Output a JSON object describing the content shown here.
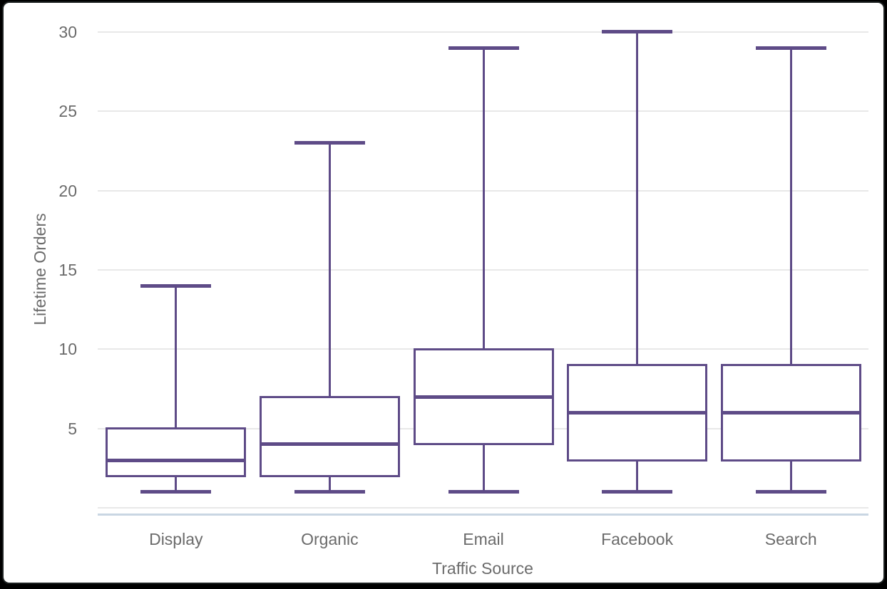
{
  "chart_data": {
    "type": "boxplot",
    "title": "",
    "xlabel": "Traffic Source",
    "ylabel": "Lifetime Orders",
    "categories": [
      "Display",
      "Organic",
      "Email",
      "Facebook",
      "Search"
    ],
    "series": [
      {
        "name": "Display",
        "whisker_low": 1,
        "q1": 2,
        "median": 3,
        "q3": 5,
        "whisker_high": 14
      },
      {
        "name": "Organic",
        "whisker_low": 1,
        "q1": 2,
        "median": 4,
        "q3": 7,
        "whisker_high": 23
      },
      {
        "name": "Email",
        "whisker_low": 1,
        "q1": 4,
        "median": 7,
        "q3": 10,
        "whisker_high": 29
      },
      {
        "name": "Facebook",
        "whisker_low": 1,
        "q1": 3,
        "median": 6,
        "q3": 9,
        "whisker_high": 30
      },
      {
        "name": "Search",
        "whisker_low": 1,
        "q1": 3,
        "median": 6,
        "q3": 9,
        "whisker_high": 29
      }
    ],
    "y_ticks": [
      5,
      10,
      15,
      20,
      25,
      30
    ],
    "y_gridlines": [
      0,
      5,
      10,
      15,
      20,
      25,
      30
    ],
    "ylim": [
      0,
      30
    ],
    "grid": "horizontal",
    "legend": "none",
    "colors": {
      "box_stroke": "#5e4b87",
      "median": "#5e4b87",
      "box_fill": "#ffffff",
      "gridline": "#e8e8e8",
      "axis_line": "#c9d6e3",
      "text": "#6b6b6b",
      "background": "#ffffff"
    }
  }
}
